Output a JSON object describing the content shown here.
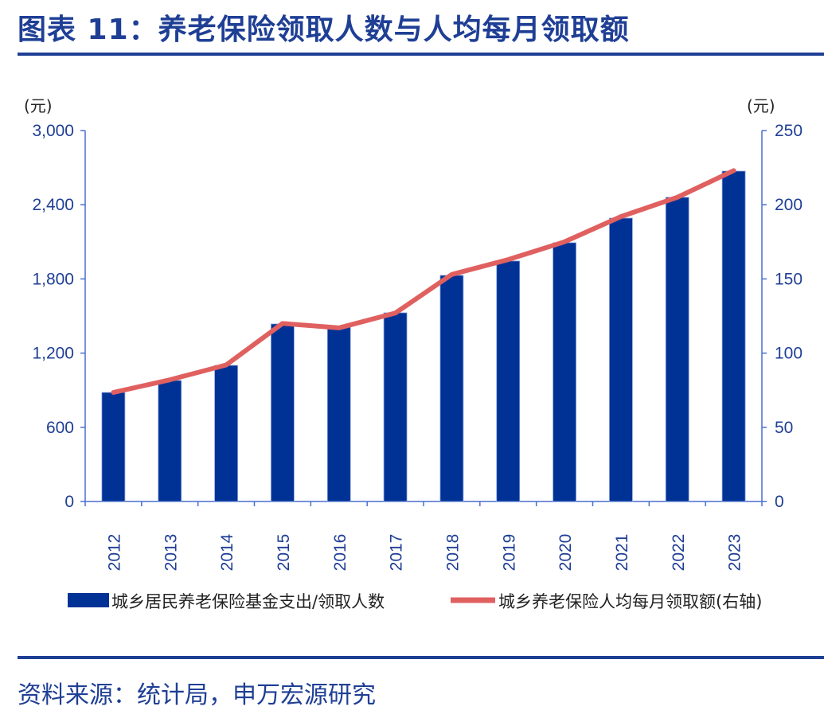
{
  "title": "图表 11：养老保险领取人数与人均每月领取额",
  "source": "资料来源：统计局，申万宏源研究",
  "chart_data": {
    "type": "bar+line",
    "categories": [
      "2012",
      "2013",
      "2014",
      "2015",
      "2016",
      "2017",
      "2018",
      "2019",
      "2020",
      "2021",
      "2022",
      "2023"
    ],
    "series": [
      {
        "name": "城乡居民养老保险基金支出/领取人数",
        "type": "bar",
        "axis": "left",
        "color": "#003296",
        "values": [
          882,
          979,
          1101,
          1436,
          1410,
          1526,
          1829,
          1945,
          2093,
          2292,
          2460,
          2672
        ]
      },
      {
        "name": "城乡养老保险人均每月领取额(右轴)",
        "type": "line",
        "axis": "right",
        "color": "#e06060",
        "values": [
          73.5,
          82,
          92,
          120,
          117,
          127,
          153,
          163,
          175,
          192,
          205,
          223
        ]
      }
    ],
    "left_axis": {
      "unit": "(元)",
      "ylim": [
        0,
        3000
      ],
      "ticks": [
        0,
        600,
        1200,
        1800,
        2400,
        3000
      ],
      "tick_labels": [
        "0",
        "600",
        "1,200",
        "1,800",
        "2,400",
        "3,000"
      ]
    },
    "right_axis": {
      "unit": "(元)",
      "ylim": [
        0,
        250
      ],
      "ticks": [
        0,
        50,
        100,
        150,
        200,
        250
      ],
      "tick_labels": [
        "0",
        "50",
        "100",
        "150",
        "200",
        "250"
      ]
    },
    "grid": false,
    "legend_placement": "bottom"
  }
}
